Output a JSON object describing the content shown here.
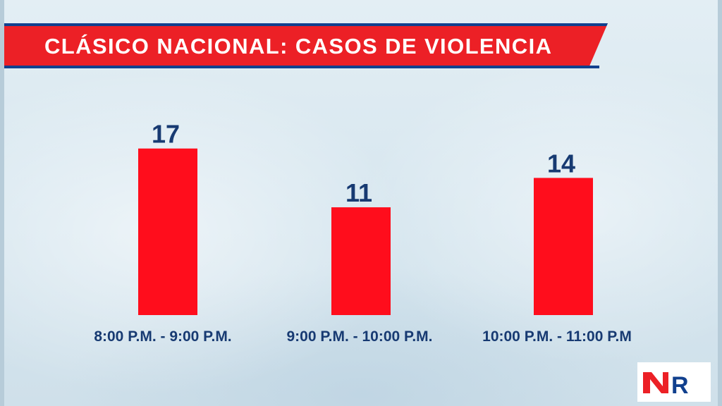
{
  "header": {
    "title": "CLÁSICO NACIONAL: CASOS DE VIOLENCIA"
  },
  "colors": {
    "bar": "#ff0d1c",
    "label": "#173a72",
    "title_bg": "#ec2026",
    "title_accent": "#11408e"
  },
  "logo": {
    "text": "NR"
  },
  "chart_data": {
    "type": "bar",
    "title": "CLÁSICO NACIONAL: CASOS DE VIOLENCIA",
    "categories": [
      "8:00 P.M. - 9:00 P.M.",
      "9:00 P.M. - 10:00 P.M.",
      "10:00 P.M. - 11:00 P.M"
    ],
    "values": [
      17,
      11,
      14
    ],
    "xlabel": "",
    "ylabel": "",
    "grid": false,
    "data_labels": true
  }
}
